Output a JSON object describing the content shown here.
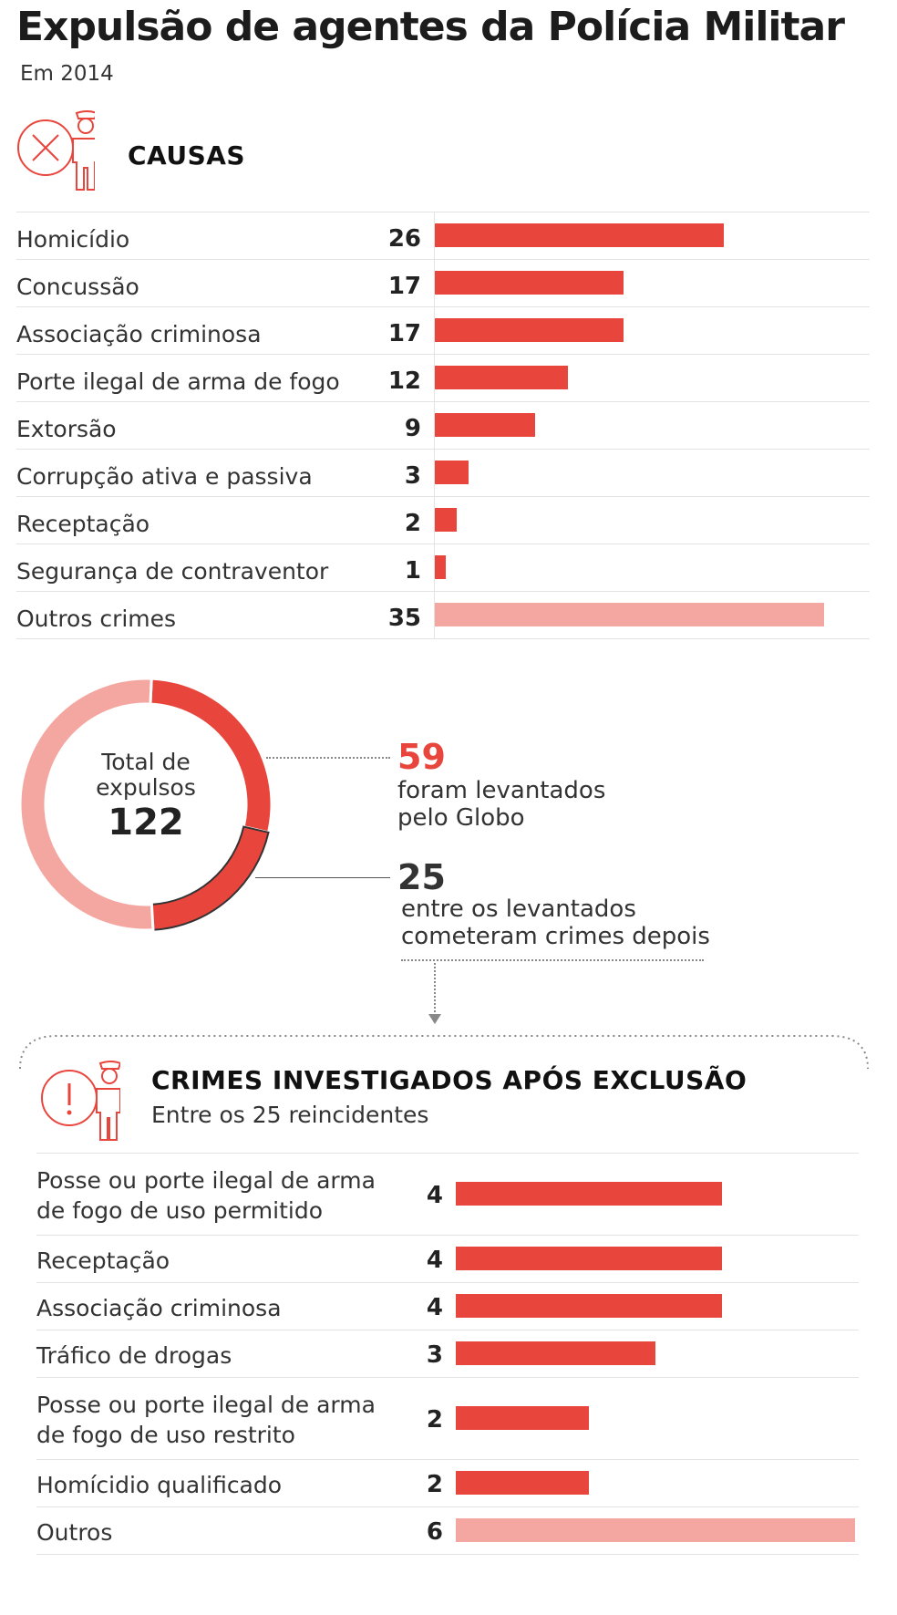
{
  "title": "Expulsão de agentes da Polícia Militar",
  "subtitle": "Em 2014",
  "colors": {
    "accent": "#e8453c",
    "light": "#f4a7a1",
    "dark": "#333333"
  },
  "icons": {
    "causes": "officer-cancel-icon",
    "after": "officer-alert-icon"
  },
  "causes": {
    "title": "CAUSAS"
  },
  "total": {
    "caption_line1": "Total de",
    "caption_line2": "expulsos",
    "value": "122"
  },
  "levantados": {
    "value": "59",
    "line1": "foram levantados",
    "line2": "pelo Globo"
  },
  "reincidentes": {
    "value": "25",
    "line1": "entre os levantados",
    "line2": "cometeram crimes depois"
  },
  "after": {
    "title": "CRIMES INVESTIGADOS APÓS EXCLUSÃO",
    "subtitle": "Entre os 25 reincidentes"
  },
  "chart_data": [
    {
      "type": "bar",
      "orientation": "horizontal",
      "categories": [
        "Homicídio",
        "Concussão",
        "Associação criminosa",
        "Porte ilegal de arma de fogo",
        "Extorsão",
        "Corrupção ativa e passiva",
        "Receptação",
        "Segurança de contraventor",
        "Outros crimes"
      ],
      "values": [
        26,
        17,
        17,
        12,
        9,
        3,
        2,
        1,
        35
      ],
      "highlight": [
        true,
        true,
        true,
        true,
        true,
        true,
        true,
        true,
        false
      ]
    },
    {
      "type": "pie",
      "style": "donut",
      "total": 122,
      "segments": [
        {
          "value": 34
        },
        {
          "value": 25
        },
        {
          "value": 63
        }
      ]
    },
    {
      "type": "bar",
      "orientation": "horizontal",
      "categories": [
        [
          "Posse ou porte ilegal de arma",
          "de fogo de uso permitido"
        ],
        [
          "Receptação"
        ],
        [
          "Associação criminosa"
        ],
        [
          "Tráfico de drogas"
        ],
        [
          "Posse ou porte ilegal de arma",
          "de fogo de uso restrito"
        ],
        [
          "Homícidio qualificado"
        ],
        [
          "Outros"
        ]
      ],
      "values": [
        4,
        4,
        4,
        3,
        2,
        2,
        6
      ],
      "highlight": [
        true,
        true,
        true,
        true,
        true,
        true,
        false
      ]
    }
  ]
}
